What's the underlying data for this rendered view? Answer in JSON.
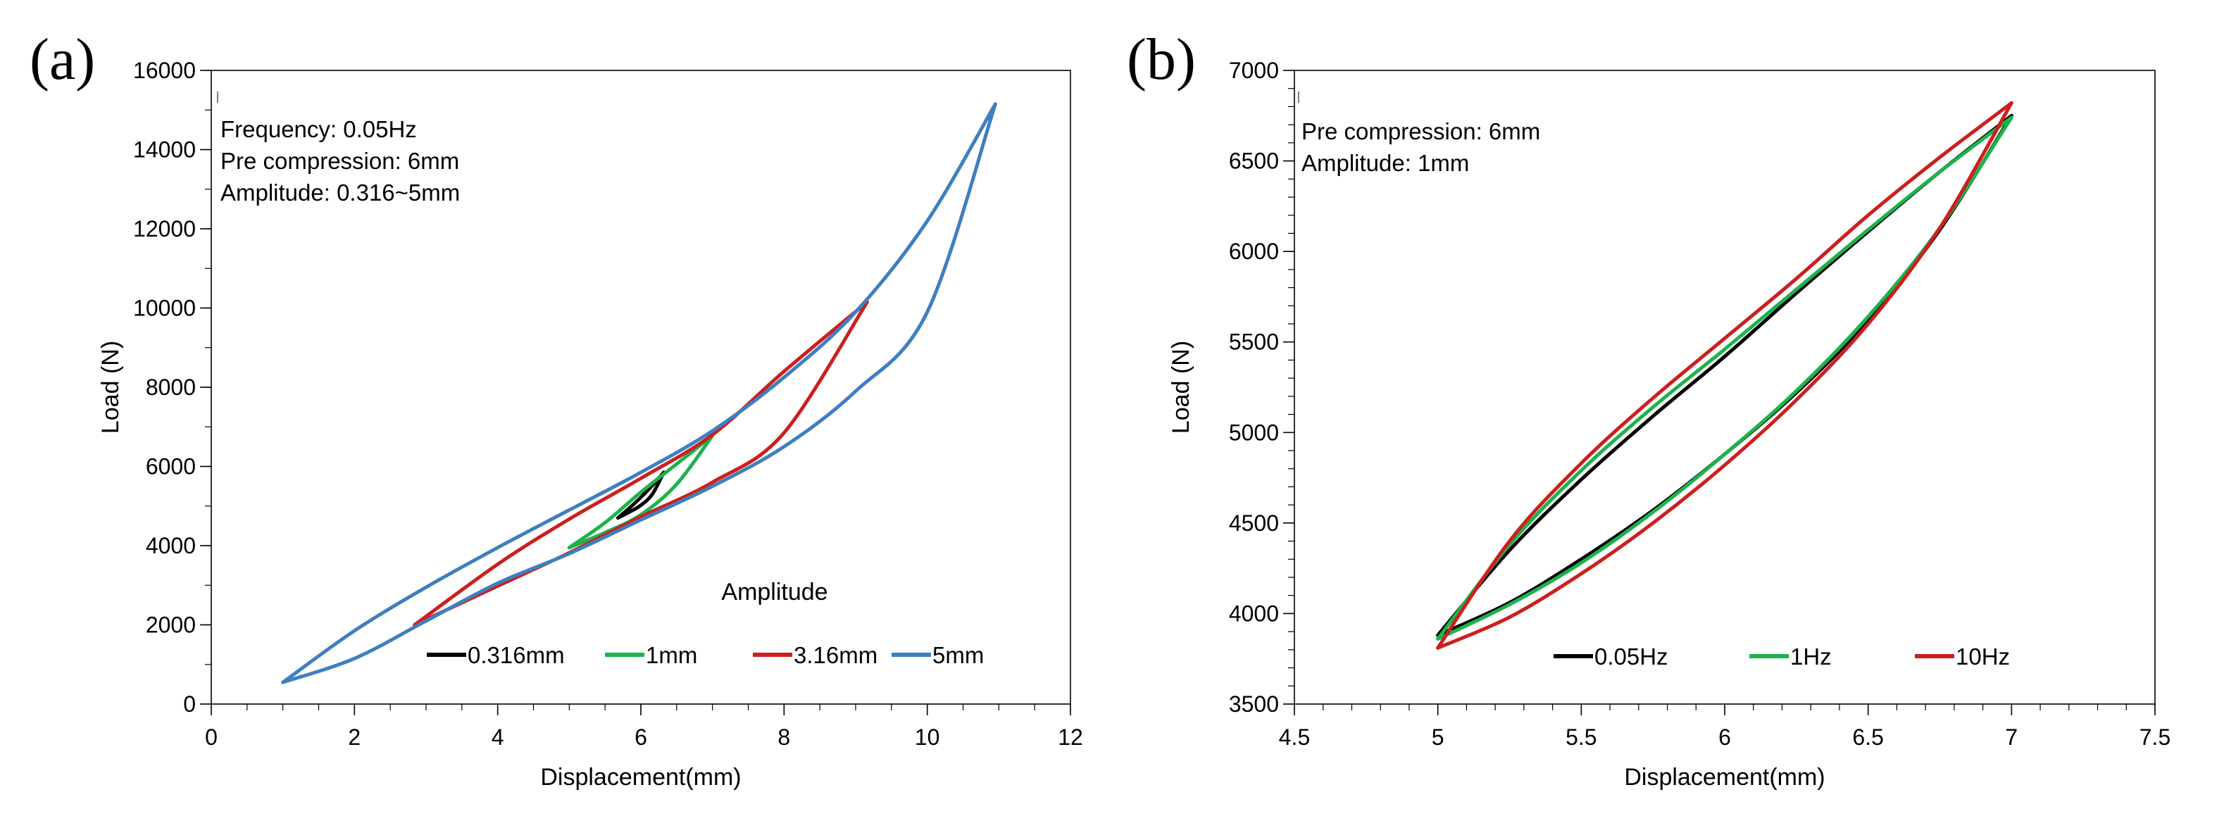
{
  "chart_data": [
    {
      "type": "line",
      "panel_label": "(a)",
      "xlabel": "Displacement(mm)",
      "ylabel": "Load (N)",
      "xlim": [
        0,
        12
      ],
      "ylim": [
        0,
        16000
      ],
      "xticks": [
        0,
        2,
        4,
        6,
        8,
        10,
        12
      ],
      "yticks": [
        0,
        2000,
        4000,
        6000,
        8000,
        10000,
        12000,
        14000,
        16000
      ],
      "x_minor_step": 0.5,
      "y_minor_step": 1000,
      "annotations": [
        "Frequency: 0.05Hz",
        "Pre compression: 6mm",
        "Amplitude: 0.316~5mm"
      ],
      "legend_title": "Amplitude",
      "legend_position": "bottom-right",
      "series": [
        {
          "name": "0.316mm",
          "color": "#000000",
          "x_min": 5.68,
          "x_max": 6.32,
          "upper": [
            [
              5.68,
              4700
            ],
            [
              5.84,
              4950
            ],
            [
              6.0,
              5220
            ],
            [
              6.16,
              5520
            ],
            [
              6.32,
              5850
            ]
          ],
          "lower": [
            [
              5.68,
              4700
            ],
            [
              5.84,
              4850
            ],
            [
              6.0,
              5020
            ],
            [
              6.16,
              5300
            ],
            [
              6.32,
              5850
            ]
          ]
        },
        {
          "name": "1mm",
          "color": "#1db24b",
          "x_min": 5.0,
          "x_max": 7.0,
          "upper": [
            [
              5.0,
              3950
            ],
            [
              5.5,
              4580
            ],
            [
              6.0,
              5350
            ],
            [
              6.5,
              6060
            ],
            [
              7.0,
              6780
            ]
          ],
          "lower": [
            [
              5.0,
              3950
            ],
            [
              5.5,
              4330
            ],
            [
              6.0,
              4780
            ],
            [
              6.5,
              5550
            ],
            [
              7.0,
              6780
            ]
          ]
        },
        {
          "name": "3.16mm",
          "color": "#cc1f1f",
          "x_min": 2.84,
          "x_max": 9.16,
          "upper": [
            [
              2.84,
              2000
            ],
            [
              4.0,
              3530
            ],
            [
              5.0,
              4670
            ],
            [
              6.0,
              5700
            ],
            [
              7.0,
              6800
            ],
            [
              8.0,
              8400
            ],
            [
              9.16,
              10150
            ]
          ],
          "lower": [
            [
              2.84,
              2000
            ],
            [
              4.0,
              2980
            ],
            [
              5.0,
              3820
            ],
            [
              6.0,
              4730
            ],
            [
              7.0,
              5600
            ],
            [
              8.0,
              6850
            ],
            [
              9.16,
              10150
            ]
          ]
        },
        {
          "name": "5mm",
          "color": "#3f7fbf",
          "x_min": 1.0,
          "x_max": 10.95,
          "upper": [
            [
              1.0,
              550
            ],
            [
              2.0,
              1850
            ],
            [
              3.0,
              2950
            ],
            [
              4.0,
              3950
            ],
            [
              5.0,
              4900
            ],
            [
              6.0,
              5850
            ],
            [
              7.0,
              6900
            ],
            [
              8.0,
              8250
            ],
            [
              9.0,
              9900
            ],
            [
              10.0,
              12200
            ],
            [
              10.95,
              15150
            ]
          ],
          "lower": [
            [
              1.0,
              550
            ],
            [
              2.0,
              1150
            ],
            [
              3.0,
              2100
            ],
            [
              4.0,
              3050
            ],
            [
              5.0,
              3800
            ],
            [
              6.0,
              4650
            ],
            [
              7.0,
              5500
            ],
            [
              8.0,
              6500
            ],
            [
              9.0,
              7900
            ],
            [
              10.0,
              9900
            ],
            [
              10.95,
              15150
            ]
          ]
        }
      ]
    },
    {
      "type": "line",
      "panel_label": "(b)",
      "xlabel": "Displacement(mm)",
      "ylabel": "Load (N)",
      "xlim": [
        4.5,
        7.5
      ],
      "ylim": [
        3500,
        7000
      ],
      "xticks": [
        4.5,
        5,
        5.5,
        6,
        6.5,
        7,
        7.5
      ],
      "yticks": [
        3500,
        4000,
        4500,
        5000,
        5500,
        6000,
        6500,
        7000
      ],
      "x_minor_step": 0.1,
      "y_minor_step": 100,
      "annotations": [
        "Pre compression: 6mm",
        "Amplitude: 1mm"
      ],
      "legend_position": "bottom-right",
      "series": [
        {
          "name": "0.05Hz",
          "color": "#000000",
          "x_min": 5.0,
          "x_max": 7.0,
          "upper": [
            [
              5.0,
              3880
            ],
            [
              5.25,
              4350
            ],
            [
              5.5,
              4740
            ],
            [
              5.75,
              5090
            ],
            [
              6.0,
              5420
            ],
            [
              6.25,
              5770
            ],
            [
              6.5,
              6110
            ],
            [
              6.75,
              6440
            ],
            [
              7.0,
              6750
            ]
          ],
          "lower": [
            [
              5.0,
              3880
            ],
            [
              5.25,
              4060
            ],
            [
              5.5,
              4300
            ],
            [
              5.75,
              4570
            ],
            [
              6.0,
              4880
            ],
            [
              6.25,
              5220
            ],
            [
              6.5,
              5620
            ],
            [
              6.75,
              6120
            ],
            [
              7.0,
              6750
            ]
          ]
        },
        {
          "name": "1Hz",
          "color": "#1db24b",
          "x_min": 5.0,
          "x_max": 7.0,
          "upper": [
            [
              5.0,
              3860
            ],
            [
              5.25,
              4380
            ],
            [
              5.5,
              4790
            ],
            [
              5.75,
              5140
            ],
            [
              6.0,
              5460
            ],
            [
              6.25,
              5790
            ],
            [
              6.5,
              6120
            ],
            [
              6.75,
              6440
            ],
            [
              7.0,
              6740
            ]
          ],
          "lower": [
            [
              5.0,
              3860
            ],
            [
              5.25,
              4050
            ],
            [
              5.5,
              4280
            ],
            [
              5.75,
              4560
            ],
            [
              6.0,
              4880
            ],
            [
              6.25,
              5230
            ],
            [
              6.5,
              5640
            ],
            [
              6.75,
              6130
            ],
            [
              7.0,
              6740
            ]
          ]
        },
        {
          "name": "10Hz",
          "color": "#cc1f1f",
          "x_min": 5.0,
          "x_max": 7.0,
          "upper": [
            [
              5.0,
              3810
            ],
            [
              5.25,
              4400
            ],
            [
              5.5,
              4830
            ],
            [
              5.75,
              5190
            ],
            [
              6.0,
              5520
            ],
            [
              6.25,
              5850
            ],
            [
              6.5,
              6200
            ],
            [
              6.75,
              6520
            ],
            [
              7.0,
              6820
            ]
          ],
          "lower": [
            [
              5.0,
              3810
            ],
            [
              5.25,
              3980
            ],
            [
              5.5,
              4220
            ],
            [
              5.75,
              4500
            ],
            [
              6.0,
              4820
            ],
            [
              6.25,
              5180
            ],
            [
              6.5,
              5600
            ],
            [
              6.75,
              6130
            ],
            [
              7.0,
              6820
            ]
          ]
        }
      ]
    }
  ]
}
